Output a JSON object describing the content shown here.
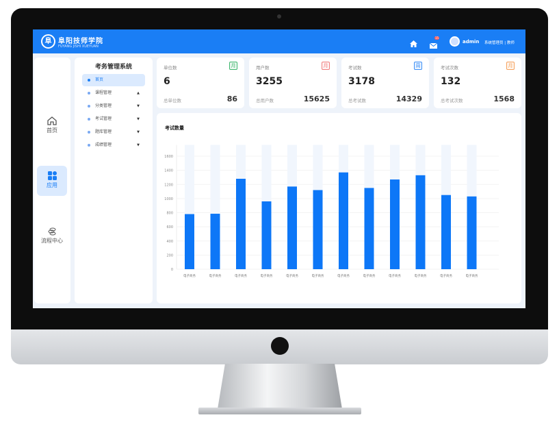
{
  "header": {
    "logo_badge": "阜",
    "logo_cn": "阜阳技师学院",
    "logo_en": "FUYANG JISHI XUEYUAN",
    "mail_badge": "15",
    "username": "admin",
    "role": "系统管理员 | 教师"
  },
  "rail": [
    {
      "label": "首页",
      "icon": "home-icon"
    },
    {
      "label": "应用",
      "icon": "apps-icon",
      "active": true
    },
    {
      "label": "流程中心",
      "icon": "flow-icon"
    }
  ],
  "menu": {
    "title": "考务管理系统",
    "items": [
      {
        "label": "首页",
        "active": true
      },
      {
        "label": "课程管理",
        "arrow": "▲"
      },
      {
        "label": "分类管理",
        "arrow": "▼"
      },
      {
        "label": "考试管理",
        "arrow": "▼"
      },
      {
        "label": "题库管理",
        "arrow": "▼"
      },
      {
        "label": "成绩管理",
        "arrow": "▼"
      }
    ]
  },
  "stats": [
    {
      "label": "单位数",
      "badge": "月",
      "badge_color": "#3bb56b",
      "value": "6",
      "sub": "总单位数",
      "total": "86"
    },
    {
      "label": "用户数",
      "badge": "月",
      "badge_color": "#f07c7c",
      "value": "3255",
      "sub": "总用户数",
      "total": "15625"
    },
    {
      "label": "考试数",
      "badge": "周",
      "badge_color": "#3a8ef6",
      "value": "3178",
      "sub": "总考试数",
      "total": "14329"
    },
    {
      "label": "考试次数",
      "badge": "月",
      "badge_color": "#f5a05a",
      "value": "132",
      "sub": "总考试次数",
      "total": "1568"
    }
  ],
  "chart_data": {
    "type": "bar",
    "title": "考试数量",
    "categories": [
      "电子商务",
      "电子商务",
      "电子商务",
      "电子商务",
      "电子商务",
      "电子商务",
      "电子商务",
      "电子商务",
      "电子商务",
      "电子商务",
      "电子商务",
      "电子商务"
    ],
    "values": [
      780,
      785,
      1280,
      960,
      1170,
      1120,
      1370,
      1150,
      1270,
      1330,
      1050,
      1030
    ],
    "background_max": 1760,
    "yticks": [
      0,
      200,
      400,
      600,
      800,
      1000,
      1200,
      1400,
      1600
    ],
    "ylim": [
      0,
      1760
    ],
    "grid": true,
    "bar_color": "#0d77f7",
    "background_color": "#f1f6fd"
  }
}
